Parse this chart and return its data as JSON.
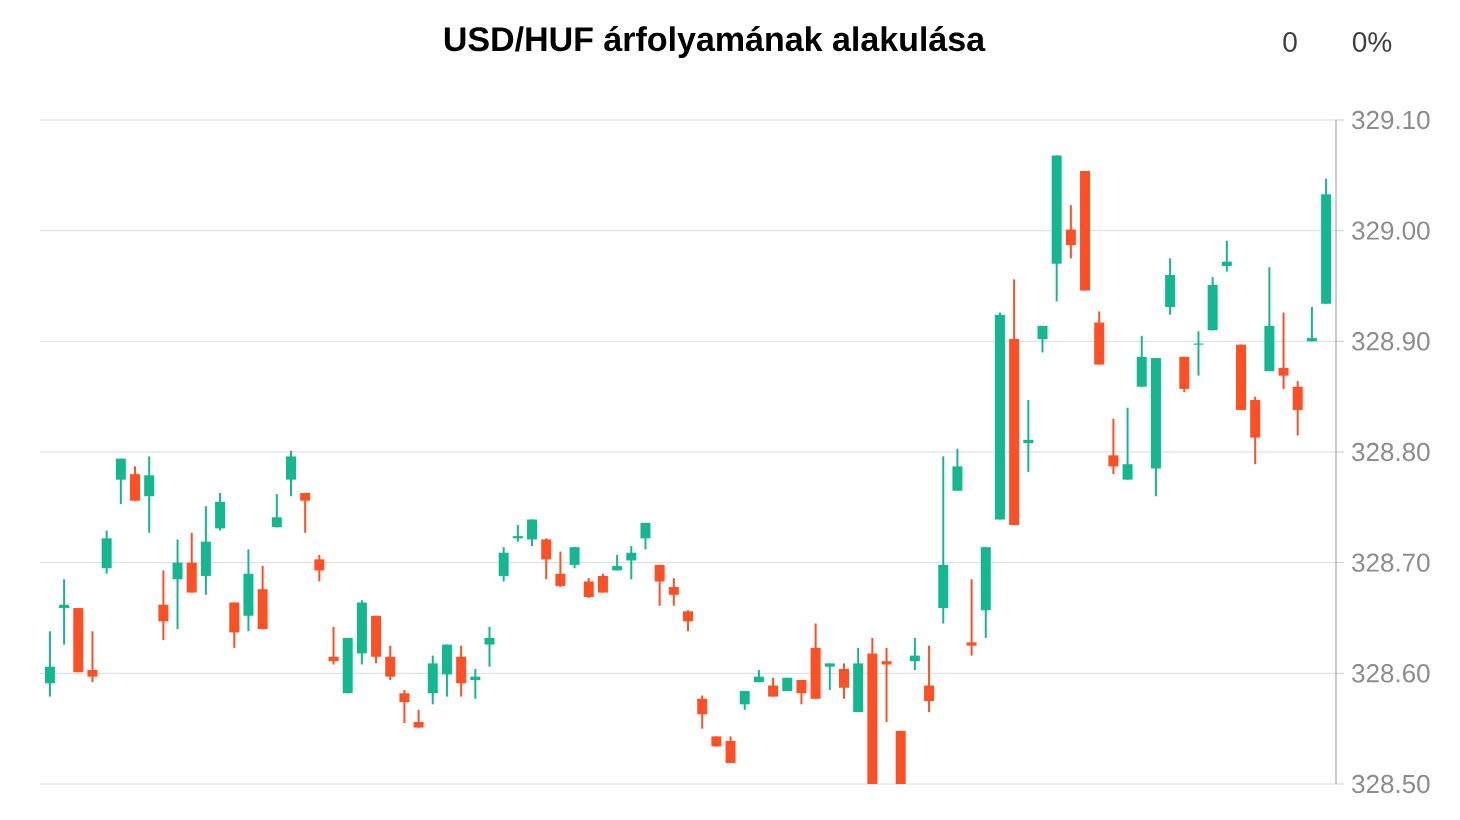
{
  "chart_data": {
    "type": "candlestick",
    "title": "USD/HUF árfolyamának alakulása",
    "annotations": [
      "0",
      "0%"
    ],
    "categories": [
      null,
      null,
      null,
      null,
      null,
      null,
      null,
      null,
      null,
      null,
      null,
      null,
      null,
      null,
      null,
      null,
      null,
      null,
      null,
      null,
      null,
      null,
      null,
      null,
      null,
      null,
      null,
      null,
      null,
      null,
      null,
      null,
      null,
      null,
      null,
      null,
      null,
      null,
      null,
      null,
      null,
      null,
      null,
      null,
      null,
      null,
      null,
      null,
      null,
      null,
      null,
      null,
      null,
      null,
      null,
      null,
      null,
      null,
      null,
      null,
      null,
      null,
      null,
      null,
      null,
      null,
      null,
      null,
      null,
      null,
      null,
      null,
      null,
      null,
      null,
      null,
      null,
      null,
      null,
      null,
      null,
      null,
      null,
      null,
      null,
      null,
      null,
      null,
      null,
      null,
      null
    ],
    "ohlc": [
      [
        328.591,
        328.638,
        328.579,
        328.606
      ],
      [
        328.659,
        328.685,
        328.626,
        328.662
      ],
      [
        328.659,
        328.659,
        328.601,
        328.601
      ],
      [
        328.603,
        328.638,
        328.592,
        328.597
      ],
      [
        328.695,
        328.729,
        328.69,
        328.722
      ],
      [
        328.775,
        328.794,
        328.753,
        328.794
      ],
      [
        328.78,
        328.787,
        328.756,
        328.756
      ],
      [
        328.76,
        328.796,
        328.727,
        328.779
      ],
      [
        328.662,
        328.693,
        328.63,
        328.647
      ],
      [
        328.685,
        328.721,
        328.64,
        328.7
      ],
      [
        328.7,
        328.727,
        328.673,
        328.673
      ],
      [
        328.688,
        328.751,
        328.671,
        328.719
      ],
      [
        328.731,
        328.763,
        328.729,
        328.755
      ],
      [
        328.664,
        328.664,
        328.623,
        328.637
      ],
      [
        328.652,
        328.712,
        328.638,
        328.69
      ],
      [
        328.676,
        328.697,
        328.64,
        328.64
      ],
      [
        328.732,
        328.762,
        328.732,
        328.741
      ],
      [
        328.775,
        328.801,
        328.76,
        328.796
      ],
      [
        328.763,
        328.763,
        328.727,
        328.756
      ],
      [
        328.703,
        328.707,
        328.683,
        328.693
      ],
      [
        328.615,
        328.642,
        328.608,
        328.611
      ],
      [
        328.582,
        328.632,
        328.582,
        328.632
      ],
      [
        328.618,
        328.666,
        328.608,
        328.664
      ],
      [
        328.652,
        328.652,
        328.609,
        328.615
      ],
      [
        328.615,
        328.625,
        328.594,
        328.597
      ],
      [
        328.582,
        328.585,
        328.555,
        328.574
      ],
      [
        328.556,
        328.567,
        328.551,
        328.551
      ],
      [
        328.582,
        328.616,
        328.572,
        328.609
      ],
      [
        328.599,
        328.626,
        328.579,
        328.626
      ],
      [
        328.615,
        328.625,
        328.579,
        328.591
      ],
      [
        328.594,
        328.604,
        328.577,
        328.597
      ],
      [
        328.626,
        328.642,
        328.606,
        328.632
      ],
      [
        328.688,
        328.714,
        328.683,
        328.709
      ],
      [
        328.722,
        328.734,
        328.719,
        328.724
      ],
      [
        328.721,
        328.739,
        328.715,
        328.739
      ],
      [
        328.721,
        328.722,
        328.685,
        328.703
      ],
      [
        328.69,
        328.71,
        328.678,
        328.679
      ],
      [
        328.698,
        328.714,
        328.695,
        328.714
      ],
      [
        328.683,
        328.686,
        328.668,
        328.669
      ],
      [
        328.688,
        328.69,
        328.673,
        328.673
      ],
      [
        328.693,
        328.707,
        328.693,
        328.697
      ],
      [
        328.702,
        328.715,
        328.685,
        328.709
      ],
      [
        328.722,
        328.736,
        328.712,
        328.736
      ],
      [
        328.698,
        328.698,
        328.661,
        328.683
      ],
      [
        328.678,
        328.686,
        328.661,
        328.671
      ],
      [
        328.656,
        328.657,
        328.638,
        328.647
      ],
      [
        328.577,
        328.58,
        328.55,
        328.563
      ],
      [
        328.543,
        328.543,
        328.534,
        328.534
      ],
      [
        328.539,
        328.543,
        328.519,
        328.519
      ],
      [
        328.572,
        328.584,
        328.567,
        328.584
      ],
      [
        328.592,
        328.603,
        328.592,
        328.597
      ],
      [
        328.589,
        328.596,
        328.579,
        328.579
      ],
      [
        328.584,
        328.596,
        328.584,
        328.596
      ],
      [
        328.594,
        328.594,
        328.572,
        328.582
      ],
      [
        328.623,
        328.645,
        328.577,
        328.577
      ],
      [
        328.606,
        328.609,
        328.585,
        328.609
      ],
      [
        328.604,
        328.609,
        328.577,
        328.587
      ],
      [
        328.565,
        328.623,
        328.565,
        328.609
      ],
      [
        328.618,
        328.632,
        328.5,
        328.5
      ],
      [
        328.611,
        328.623,
        328.556,
        328.608
      ],
      [
        328.548,
        328.548,
        328.5,
        328.5
      ],
      [
        328.611,
        328.632,
        328.603,
        328.616
      ],
      [
        328.589,
        328.625,
        328.565,
        328.575
      ],
      [
        328.659,
        328.796,
        328.645,
        328.698
      ],
      [
        328.765,
        328.803,
        328.765,
        328.787
      ],
      [
        328.628,
        328.685,
        328.616,
        328.625
      ],
      [
        328.657,
        328.714,
        328.632,
        328.714
      ],
      [
        328.739,
        328.926,
        328.739,
        328.924
      ],
      [
        328.902,
        328.956,
        328.734,
        328.734
      ],
      [
        328.808,
        328.847,
        328.782,
        328.811
      ],
      [
        328.902,
        328.914,
        328.89,
        328.914
      ],
      [
        328.97,
        329.068,
        328.936,
        329.068
      ],
      [
        329.001,
        329.023,
        328.975,
        328.987
      ],
      [
        329.054,
        329.054,
        328.946,
        328.946
      ],
      [
        328.917,
        328.927,
        328.879,
        328.879
      ],
      [
        328.797,
        328.83,
        328.78,
        328.787
      ],
      [
        328.775,
        328.84,
        328.775,
        328.789
      ],
      [
        328.859,
        328.905,
        328.859,
        328.886
      ],
      [
        328.785,
        328.885,
        328.76,
        328.885
      ],
      [
        328.931,
        328.975,
        328.924,
        328.96
      ],
      [
        328.886,
        328.886,
        328.854,
        328.857
      ],
      [
        328.897,
        328.909,
        328.869,
        328.898
      ],
      [
        328.91,
        328.958,
        328.91,
        328.951
      ],
      [
        328.968,
        328.991,
        328.963,
        328.972
      ],
      [
        328.897,
        328.897,
        328.838,
        328.838
      ],
      [
        328.847,
        328.85,
        328.789,
        328.813
      ],
      [
        328.873,
        328.967,
        328.873,
        328.914
      ],
      [
        328.876,
        328.926,
        328.857,
        328.869
      ],
      [
        328.859,
        328.864,
        328.815,
        328.838
      ],
      [
        328.9,
        328.931,
        328.9,
        328.903
      ],
      [
        328.934,
        329.047,
        328.934,
        329.033
      ]
    ],
    "colors": [
      "#14b890",
      "#14b890",
      "#ff4f24",
      "#ff4f24",
      "#14b890",
      "#14b890",
      "#ff4f24",
      "#14b890",
      "#ff4f24",
      "#14b890",
      "#ff4f24",
      "#14b890",
      "#14b890",
      "#ff4f24",
      "#14b890",
      "#ff4f24",
      "#14b890",
      "#14b890",
      "#ff4f24",
      "#ff4f24",
      "#ff4f24",
      "#14b890",
      "#14b890",
      "#ff4f24",
      "#ff4f24",
      "#ff4f24",
      "#ff4f24",
      "#14b890",
      "#14b890",
      "#ff4f24",
      "#14b890",
      "#14b890",
      "#14b890",
      "#14b890",
      "#14b890",
      "#ff4f24",
      "#ff4f24",
      "#14b890",
      "#ff4f24",
      "#ff4f24",
      "#14b890",
      "#14b890",
      "#14b890",
      "#ff4f24",
      "#ff4f24",
      "#ff4f24",
      "#ff4f24",
      "#ff4f24",
      "#ff4f24",
      "#14b890",
      "#14b890",
      "#ff4f24",
      "#14b890",
      "#ff4f24",
      "#ff4f24",
      "#14b890",
      "#ff4f24",
      "#14b890",
      "#ff4f24",
      "#ff4f24",
      "#ff4f24",
      "#14b890",
      "#ff4f24",
      "#14b890",
      "#14b890",
      "#ff4f24",
      "#14b890",
      "#14b890",
      "#ff4f24",
      "#14b890",
      "#14b890",
      "#14b890",
      "#ff4f24",
      "#ff4f24",
      "#ff4f24",
      "#ff4f24",
      "#14b890",
      "#14b890",
      "#14b890",
      "#14b890",
      "#ff4f24",
      "#14b890",
      "#14b890",
      "#14b890",
      "#ff4f24",
      "#ff4f24",
      "#14b890",
      "#ff4f24",
      "#ff4f24",
      "#14b890",
      "#14b890"
    ],
    "ylim": [
      328.5,
      329.1
    ],
    "yticks": [
      {
        "value": 328.5,
        "label": "328.50"
      },
      {
        "value": 328.6,
        "label": "328.60"
      },
      {
        "value": 328.7,
        "label": "328.70"
      },
      {
        "value": 328.8,
        "label": "328.80"
      },
      {
        "value": 328.9,
        "label": "328.90"
      },
      {
        "value": 329.0,
        "label": "329.00"
      },
      {
        "value": 329.1,
        "label": "329.10"
      }
    ],
    "grid": "y",
    "tick_labels": "y"
  }
}
